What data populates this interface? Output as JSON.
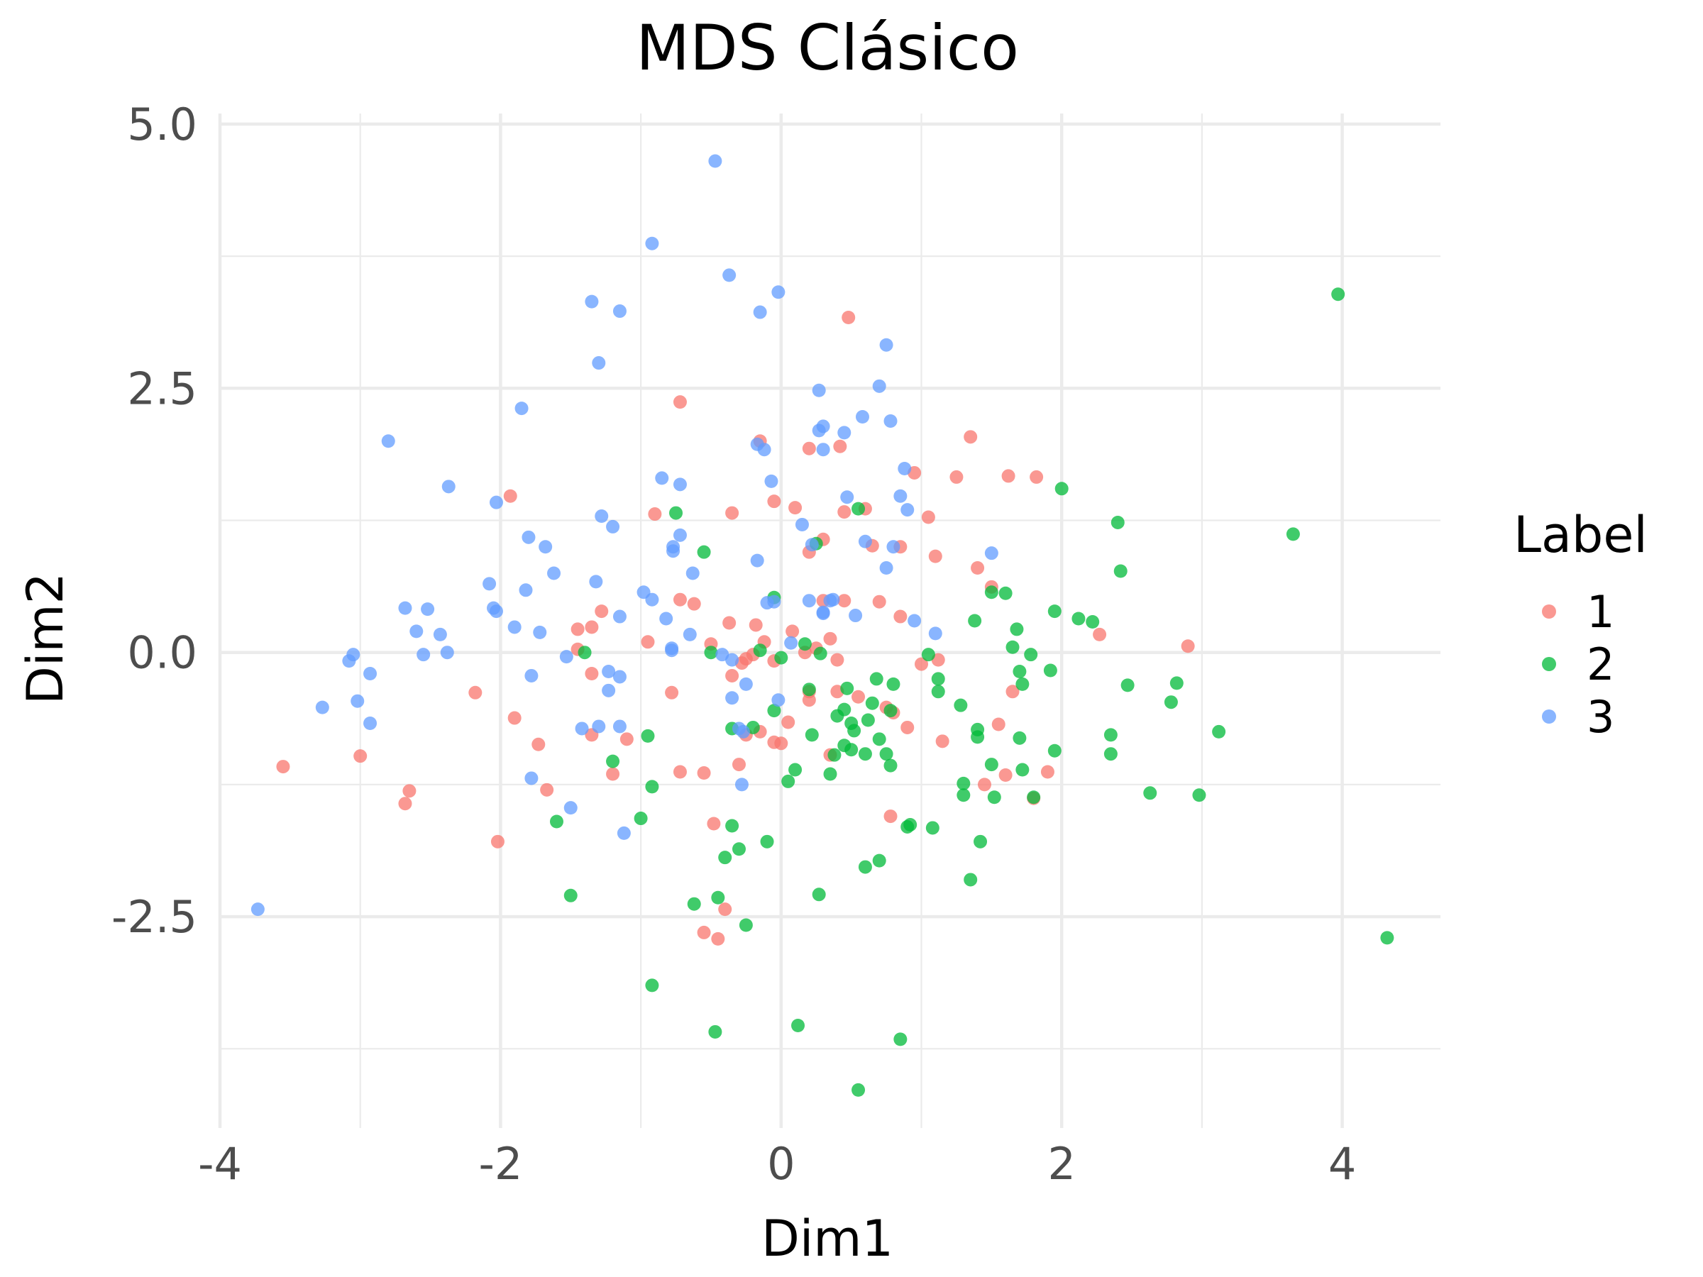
{
  "chart_data": {
    "type": "scatter",
    "title": "MDS Clásico",
    "xlabel": "Dim1",
    "ylabel": "Dim2",
    "xlim": [
      -4.0,
      4.7
    ],
    "ylim": [
      -4.5,
      5.1
    ],
    "xticks": [
      -4,
      -2,
      0,
      2,
      4
    ],
    "xtick_labels": [
      "-4",
      "-2",
      "0",
      "2",
      "4"
    ],
    "yticks": [
      -2.5,
      0.0,
      2.5,
      5.0
    ],
    "ytick_labels": [
      "-2.5",
      "0.0",
      "2.5",
      "5.0"
    ],
    "x_minor": [
      -3,
      -1,
      1,
      3
    ],
    "y_minor": [
      -3.75,
      -1.25,
      1.25,
      3.75
    ],
    "grid": true,
    "legend": {
      "title": "Label",
      "position": "right"
    },
    "series": [
      {
        "name": "1",
        "color": "#F8766D",
        "points": [
          [
            -3.55,
            -1.08
          ],
          [
            -2.65,
            -1.31
          ],
          [
            -2.68,
            -1.43
          ],
          [
            -3.0,
            -0.98
          ],
          [
            -2.18,
            -0.38
          ],
          [
            -2.02,
            -1.79
          ],
          [
            -1.93,
            1.48
          ],
          [
            -1.9,
            -0.62
          ],
          [
            -1.73,
            -0.87
          ],
          [
            -1.67,
            -1.3
          ],
          [
            -1.45,
            0.22
          ],
          [
            -1.45,
            0.03
          ],
          [
            -1.35,
            0.24
          ],
          [
            -1.35,
            -0.2
          ],
          [
            -1.35,
            -0.78
          ],
          [
            -1.28,
            0.39
          ],
          [
            -1.2,
            -1.15
          ],
          [
            -1.1,
            -0.82
          ],
          [
            -0.95,
            0.1
          ],
          [
            -0.9,
            1.31
          ],
          [
            -0.78,
            -0.38
          ],
          [
            -0.72,
            2.37
          ],
          [
            -0.72,
            0.5
          ],
          [
            -0.72,
            -1.13
          ],
          [
            -0.62,
            0.46
          ],
          [
            -0.55,
            -1.14
          ],
          [
            -0.5,
            0.08
          ],
          [
            -0.48,
            -1.62
          ],
          [
            -0.45,
            -2.71
          ],
          [
            -0.55,
            -2.65
          ],
          [
            -0.4,
            -2.43
          ],
          [
            -0.37,
            0.28
          ],
          [
            -0.35,
            1.32
          ],
          [
            -0.35,
            -0.22
          ],
          [
            -0.3,
            -1.06
          ],
          [
            -0.28,
            -0.1
          ],
          [
            -0.25,
            -0.78
          ],
          [
            -0.25,
            -0.06
          ],
          [
            -0.2,
            -0.02
          ],
          [
            -0.18,
            0.26
          ],
          [
            -0.15,
            -0.75
          ],
          [
            -0.12,
            0.1
          ],
          [
            -0.05,
            -0.85
          ],
          [
            -0.05,
            1.43
          ],
          [
            0.0,
            -0.86
          ],
          [
            0.05,
            -0.66
          ],
          [
            0.08,
            0.2
          ],
          [
            0.1,
            1.37
          ],
          [
            0.17,
            0.0
          ],
          [
            0.2,
            -0.45
          ],
          [
            0.2,
            -0.37
          ],
          [
            0.2,
            0.95
          ],
          [
            0.2,
            1.93
          ],
          [
            0.25,
            0.04
          ],
          [
            0.3,
            1.07
          ],
          [
            0.3,
            0.49
          ],
          [
            0.35,
            -0.97
          ],
          [
            0.35,
            0.13
          ],
          [
            0.4,
            -0.07
          ],
          [
            0.4,
            -0.37
          ],
          [
            0.42,
            1.95
          ],
          [
            0.45,
            1.33
          ],
          [
            0.45,
            0.49
          ],
          [
            0.48,
            3.17
          ],
          [
            0.55,
            -0.42
          ],
          [
            0.6,
            1.36
          ],
          [
            0.65,
            1.01
          ],
          [
            0.7,
            0.48
          ],
          [
            0.75,
            -0.52
          ],
          [
            0.78,
            -1.55
          ],
          [
            0.8,
            -0.57
          ],
          [
            0.85,
            1.0
          ],
          [
            0.85,
            0.34
          ],
          [
            0.9,
            -0.71
          ],
          [
            0.95,
            1.7
          ],
          [
            1.0,
            -0.11
          ],
          [
            1.05,
            1.28
          ],
          [
            1.1,
            0.91
          ],
          [
            1.12,
            -0.07
          ],
          [
            1.15,
            -0.84
          ],
          [
            1.25,
            1.66
          ],
          [
            1.35,
            2.04
          ],
          [
            1.4,
            0.8
          ],
          [
            1.45,
            -1.25
          ],
          [
            1.5,
            0.62
          ],
          [
            1.55,
            -0.68
          ],
          [
            1.6,
            -1.16
          ],
          [
            1.65,
            -0.37
          ],
          [
            1.62,
            1.67
          ],
          [
            1.8,
            -1.38
          ],
          [
            1.82,
            1.66
          ],
          [
            1.9,
            -1.13
          ],
          [
            2.27,
            0.17
          ],
          [
            2.9,
            0.06
          ],
          [
            -0.15,
            2.0
          ],
          [
            -0.05,
            -0.08
          ]
        ]
      },
      {
        "name": "2",
        "color": "#00BA38",
        "points": [
          [
            -1.4,
            0.0
          ],
          [
            -1.6,
            -1.6
          ],
          [
            -1.5,
            -2.3
          ],
          [
            -1.2,
            -1.03
          ],
          [
            -1.0,
            -1.57
          ],
          [
            -0.95,
            -0.79
          ],
          [
            -0.92,
            -1.27
          ],
          [
            -0.92,
            -3.15
          ],
          [
            -0.75,
            1.32
          ],
          [
            -0.62,
            -2.38
          ],
          [
            -0.55,
            0.95
          ],
          [
            -0.5,
            0.0
          ],
          [
            -0.47,
            -3.59
          ],
          [
            -0.45,
            -2.32
          ],
          [
            -0.4,
            -1.94
          ],
          [
            -0.35,
            -0.72
          ],
          [
            -0.35,
            -1.64
          ],
          [
            -0.3,
            -1.86
          ],
          [
            -0.25,
            -2.58
          ],
          [
            -0.2,
            -0.71
          ],
          [
            -0.15,
            0.02
          ],
          [
            -0.1,
            -1.79
          ],
          [
            -0.05,
            -0.55
          ],
          [
            -0.05,
            0.52
          ],
          [
            0.0,
            -0.05
          ],
          [
            0.05,
            -1.22
          ],
          [
            0.1,
            -1.11
          ],
          [
            0.12,
            -3.53
          ],
          [
            0.17,
            0.08
          ],
          [
            0.2,
            -0.35
          ],
          [
            0.22,
            -0.78
          ],
          [
            0.25,
            1.03
          ],
          [
            0.27,
            -2.29
          ],
          [
            0.28,
            -0.01
          ],
          [
            0.35,
            -1.15
          ],
          [
            0.38,
            -0.97
          ],
          [
            0.4,
            -0.6
          ],
          [
            0.45,
            -0.54
          ],
          [
            0.45,
            -0.88
          ],
          [
            0.47,
            -0.34
          ],
          [
            0.5,
            -0.67
          ],
          [
            0.5,
            -0.92
          ],
          [
            0.52,
            -0.74
          ],
          [
            0.55,
            1.36
          ],
          [
            0.55,
            -4.14
          ],
          [
            0.6,
            -2.03
          ],
          [
            0.6,
            -0.96
          ],
          [
            0.62,
            -0.64
          ],
          [
            0.65,
            -0.48
          ],
          [
            0.68,
            -0.25
          ],
          [
            0.7,
            -1.97
          ],
          [
            0.7,
            -0.82
          ],
          [
            0.75,
            -0.96
          ],
          [
            0.78,
            -0.55
          ],
          [
            0.78,
            -1.07
          ],
          [
            0.8,
            -0.3
          ],
          [
            0.85,
            -3.66
          ],
          [
            0.9,
            -1.65
          ],
          [
            0.92,
            -1.63
          ],
          [
            1.05,
            -0.02
          ],
          [
            1.08,
            -1.66
          ],
          [
            1.12,
            -0.25
          ],
          [
            1.12,
            -0.37
          ],
          [
            1.28,
            -0.5
          ],
          [
            1.3,
            -1.24
          ],
          [
            1.3,
            -1.35
          ],
          [
            1.35,
            -2.15
          ],
          [
            1.38,
            0.3
          ],
          [
            1.4,
            -0.73
          ],
          [
            1.4,
            -0.8
          ],
          [
            1.42,
            -1.79
          ],
          [
            1.5,
            0.57
          ],
          [
            1.5,
            -1.06
          ],
          [
            1.52,
            -1.37
          ],
          [
            1.6,
            0.56
          ],
          [
            1.65,
            0.05
          ],
          [
            1.68,
            0.22
          ],
          [
            1.7,
            -0.18
          ],
          [
            1.7,
            -0.81
          ],
          [
            1.72,
            -1.11
          ],
          [
            1.72,
            -0.3
          ],
          [
            1.78,
            -0.02
          ],
          [
            1.8,
            -1.37
          ],
          [
            1.92,
            -0.17
          ],
          [
            1.95,
            0.39
          ],
          [
            1.95,
            -0.93
          ],
          [
            2.0,
            1.55
          ],
          [
            2.12,
            0.32
          ],
          [
            2.22,
            0.29
          ],
          [
            2.35,
            -0.78
          ],
          [
            2.35,
            -0.96
          ],
          [
            2.4,
            1.23
          ],
          [
            2.42,
            0.77
          ],
          [
            2.47,
            -0.31
          ],
          [
            2.63,
            -1.33
          ],
          [
            2.78,
            -0.47
          ],
          [
            2.82,
            -0.29
          ],
          [
            2.98,
            -1.35
          ],
          [
            3.12,
            -0.75
          ],
          [
            3.65,
            1.12
          ],
          [
            3.97,
            3.39
          ],
          [
            4.32,
            -2.7
          ]
        ]
      },
      {
        "name": "3",
        "color": "#619CFF",
        "points": [
          [
            -3.73,
            -2.43
          ],
          [
            -3.27,
            -0.52
          ],
          [
            -3.08,
            -0.08
          ],
          [
            -3.05,
            -0.02
          ],
          [
            -3.02,
            -0.46
          ],
          [
            -2.93,
            -0.2
          ],
          [
            -2.93,
            -0.67
          ],
          [
            -2.8,
            2.0
          ],
          [
            -2.68,
            0.42
          ],
          [
            -2.6,
            0.2
          ],
          [
            -2.55,
            -0.02
          ],
          [
            -2.52,
            0.41
          ],
          [
            -2.43,
            0.17
          ],
          [
            -2.38,
            0.0
          ],
          [
            -2.37,
            1.57
          ],
          [
            -2.08,
            0.65
          ],
          [
            -2.05,
            0.42
          ],
          [
            -2.03,
            0.39
          ],
          [
            -2.03,
            1.42
          ],
          [
            -1.9,
            0.24
          ],
          [
            -1.85,
            2.31
          ],
          [
            -1.82,
            0.59
          ],
          [
            -1.8,
            1.09
          ],
          [
            -1.78,
            -0.22
          ],
          [
            -1.78,
            -1.19
          ],
          [
            -1.72,
            0.19
          ],
          [
            -1.68,
            1.0
          ],
          [
            -1.62,
            0.75
          ],
          [
            -1.53,
            -0.04
          ],
          [
            -1.5,
            -1.47
          ],
          [
            -1.42,
            -0.72
          ],
          [
            -1.35,
            3.32
          ],
          [
            -1.32,
            0.67
          ],
          [
            -1.3,
            2.74
          ],
          [
            -1.3,
            -0.7
          ],
          [
            -1.28,
            1.29
          ],
          [
            -1.23,
            -0.18
          ],
          [
            -1.23,
            -0.36
          ],
          [
            -1.2,
            1.19
          ],
          [
            -1.15,
            -0.23
          ],
          [
            -1.15,
            3.23
          ],
          [
            -1.15,
            0.34
          ],
          [
            -1.15,
            -0.7
          ],
          [
            -1.12,
            -1.71
          ],
          [
            -0.98,
            0.57
          ],
          [
            -0.92,
            3.87
          ],
          [
            -0.92,
            0.5
          ],
          [
            -0.85,
            1.65
          ],
          [
            -0.82,
            0.32
          ],
          [
            -0.78,
            0.04
          ],
          [
            -0.78,
            0.02
          ],
          [
            -0.77,
            0.96
          ],
          [
            -0.77,
            1.0
          ],
          [
            -0.72,
            1.59
          ],
          [
            -0.72,
            1.11
          ],
          [
            -0.65,
            0.17
          ],
          [
            -0.63,
            0.75
          ],
          [
            -0.47,
            4.65
          ],
          [
            -0.42,
            -0.02
          ],
          [
            -0.37,
            3.57
          ],
          [
            -0.35,
            -0.43
          ],
          [
            -0.35,
            -0.07
          ],
          [
            -0.3,
            -0.72
          ],
          [
            -0.28,
            -1.25
          ],
          [
            -0.27,
            -0.75
          ],
          [
            -0.25,
            -0.3
          ],
          [
            -0.17,
            1.97
          ],
          [
            -0.17,
            0.87
          ],
          [
            -0.15,
            3.22
          ],
          [
            -0.12,
            1.92
          ],
          [
            -0.1,
            0.47
          ],
          [
            -0.07,
            1.62
          ],
          [
            -0.05,
            0.48
          ],
          [
            -0.02,
            3.41
          ],
          [
            -0.02,
            -0.45
          ],
          [
            0.07,
            0.09
          ],
          [
            0.15,
            1.21
          ],
          [
            0.2,
            0.49
          ],
          [
            0.22,
            1.02
          ],
          [
            0.27,
            2.48
          ],
          [
            0.27,
            2.1
          ],
          [
            0.3,
            2.14
          ],
          [
            0.3,
            1.92
          ],
          [
            0.3,
            0.37
          ],
          [
            0.3,
            0.38
          ],
          [
            0.35,
            0.49
          ],
          [
            0.37,
            0.5
          ],
          [
            0.45,
            2.08
          ],
          [
            0.47,
            1.47
          ],
          [
            0.53,
            0.35
          ],
          [
            0.58,
            2.23
          ],
          [
            0.6,
            1.05
          ],
          [
            0.7,
            2.52
          ],
          [
            0.75,
            2.91
          ],
          [
            0.75,
            0.8
          ],
          [
            0.78,
            2.19
          ],
          [
            0.8,
            1.0
          ],
          [
            0.85,
            1.48
          ],
          [
            0.88,
            1.74
          ],
          [
            0.9,
            1.35
          ],
          [
            0.95,
            0.3
          ],
          [
            1.1,
            0.18
          ],
          [
            1.5,
            0.94
          ]
        ]
      }
    ]
  }
}
